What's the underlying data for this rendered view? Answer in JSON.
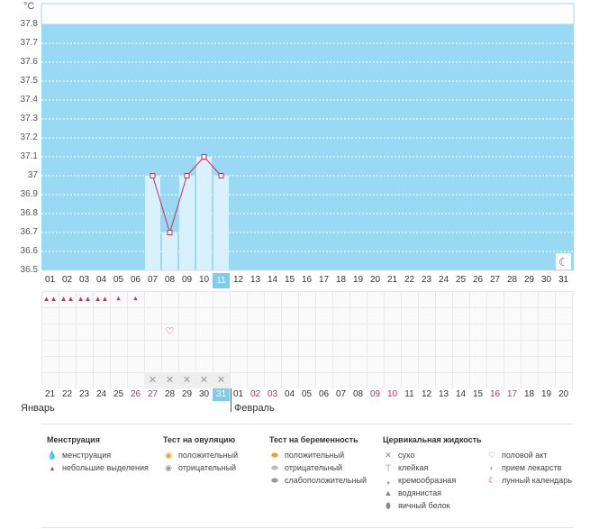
{
  "chart_data": {
    "type": "line",
    "unit": "°C",
    "y_ticks": [
      "37.8",
      "37.7",
      "37.6",
      "37.5",
      "37.4",
      "37.3",
      "37.2",
      "37.1",
      "37",
      "36.9",
      "36.8",
      "36.7",
      "36.6",
      "36.5"
    ],
    "ylim": [
      36.5,
      37.8
    ],
    "top_days": [
      "01",
      "02",
      "03",
      "04",
      "05",
      "06",
      "07",
      "08",
      "09",
      "10",
      "11",
      "12",
      "13",
      "14",
      "15",
      "16",
      "17",
      "18",
      "19",
      "20",
      "21",
      "22",
      "23",
      "24",
      "25",
      "26",
      "27",
      "28",
      "29",
      "30",
      "31"
    ],
    "selected_top_index": 10,
    "series": [
      {
        "x": [
          "07",
          "08",
          "09",
          "10",
          "11"
        ],
        "values": [
          37.0,
          36.7,
          37.0,
          37.1,
          37.0
        ]
      }
    ],
    "colors": {
      "plot_bg": "#99d9f4",
      "bar": "#d9f1fc",
      "line": "#d2295c",
      "grid": "#ffffff"
    }
  },
  "markers": {
    "menstruation_rows": [
      {
        "col": 0,
        "icon": "drop-big"
      },
      {
        "col": 1,
        "icon": "drop-big"
      },
      {
        "col": 2,
        "icon": "drop-big"
      },
      {
        "col": 3,
        "icon": "drop-big"
      },
      {
        "col": 4,
        "icon": "drop-small"
      },
      {
        "col": 5,
        "icon": "drop-small"
      }
    ],
    "heart_col": 7,
    "cross_cols": [
      6,
      7,
      8,
      9,
      10
    ],
    "moon_col": 30
  },
  "bottom_days": [
    {
      "d": "21",
      "red": false
    },
    {
      "d": "22",
      "red": false
    },
    {
      "d": "23",
      "red": false
    },
    {
      "d": "24",
      "red": false
    },
    {
      "d": "25",
      "red": false
    },
    {
      "d": "26",
      "red": true
    },
    {
      "d": "27",
      "red": true
    },
    {
      "d": "28",
      "red": false
    },
    {
      "d": "29",
      "red": false
    },
    {
      "d": "30",
      "red": false
    },
    {
      "d": "31",
      "red": false,
      "sel": true
    },
    {
      "d": "01",
      "red": false
    },
    {
      "d": "02",
      "red": true
    },
    {
      "d": "03",
      "red": true
    },
    {
      "d": "04",
      "red": false
    },
    {
      "d": "05",
      "red": false
    },
    {
      "d": "06",
      "red": false
    },
    {
      "d": "07",
      "red": false
    },
    {
      "d": "08",
      "red": false
    },
    {
      "d": "09",
      "red": true
    },
    {
      "d": "10",
      "red": true
    },
    {
      "d": "11",
      "red": false
    },
    {
      "d": "12",
      "red": false
    },
    {
      "d": "13",
      "red": false
    },
    {
      "d": "14",
      "red": false
    },
    {
      "d": "15",
      "red": false
    },
    {
      "d": "16",
      "red": true
    },
    {
      "d": "17",
      "red": true
    },
    {
      "d": "18",
      "red": false
    },
    {
      "d": "19",
      "red": false
    },
    {
      "d": "20",
      "red": false
    }
  ],
  "months": {
    "left": "Январь",
    "right": "Февраль"
  },
  "legend": {
    "menstruation": {
      "title": "Менструация",
      "items": [
        {
          "icon": "drop-big-icon",
          "label": "менструация"
        },
        {
          "icon": "drop-small-icon",
          "label": "небольшие выделения"
        }
      ]
    },
    "ovulation": {
      "title": "Тест на овуляцию",
      "items": [
        {
          "icon": "orange-circle-icon",
          "label": "положительный"
        },
        {
          "icon": "grey-circle-icon",
          "label": "отрицательный"
        }
      ]
    },
    "pregnancy": {
      "title": "Тест на беременность",
      "items": [
        {
          "icon": "orange-test-icon",
          "label": "положительный"
        },
        {
          "icon": "grey-test-icon",
          "label": "отрицательный"
        },
        {
          "icon": "weak-test-icon",
          "label": "слабоположительный"
        }
      ]
    },
    "cervical": {
      "title": "Цервикальная жидкость",
      "items": [
        {
          "icon": "cross-icon",
          "label": "сухо"
        },
        {
          "icon": "sticky-icon",
          "label": "клейкая"
        },
        {
          "icon": "cream-icon",
          "label": "кремообразная"
        },
        {
          "icon": "watery-icon",
          "label": "водянистая"
        },
        {
          "icon": "egg-white-icon",
          "label": "яичный белок"
        }
      ]
    },
    "other": {
      "items": [
        {
          "icon": "heart-icon",
          "label": "половой акт"
        },
        {
          "icon": "pill-icon",
          "label": "прием лекарств"
        },
        {
          "icon": "moon-icon",
          "label": "лунный календарь"
        }
      ]
    }
  }
}
